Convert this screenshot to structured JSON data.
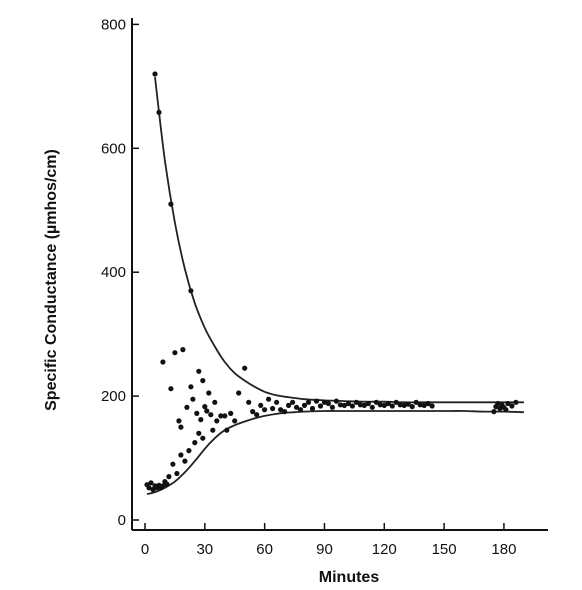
{
  "chart_data": {
    "type": "scatter",
    "title": "",
    "xlabel": "Minutes",
    "ylabel": "Specific Conductance (µmhos/cm)",
    "xlim": [
      0,
      195
    ],
    "ylim": [
      0,
      800
    ],
    "x_ticks": [
      0,
      30,
      60,
      90,
      120,
      150,
      180
    ],
    "y_ticks": [
      0,
      200,
      400,
      600,
      800
    ],
    "x_tick_labels": [
      "0",
      "30",
      "60",
      "90",
      "120",
      "150",
      "180"
    ],
    "y_tick_labels": [
      "0",
      "200",
      "400",
      "600",
      "800"
    ],
    "grid": false,
    "legend": "none",
    "colors": {
      "points": "#111111",
      "curves": "#222222",
      "axes": "#111111"
    },
    "points": [
      [
        5,
        720
      ],
      [
        7,
        658
      ],
      [
        13,
        510
      ],
      [
        23,
        370
      ],
      [
        1,
        57
      ],
      [
        2,
        52
      ],
      [
        3,
        60
      ],
      [
        4,
        49
      ],
      [
        5,
        55
      ],
      [
        6,
        52
      ],
      [
        7,
        56
      ],
      [
        8,
        52
      ],
      [
        9,
        55
      ],
      [
        10,
        62
      ],
      [
        11,
        58
      ],
      [
        12,
        70
      ],
      [
        14,
        90
      ],
      [
        16,
        75
      ],
      [
        18,
        105
      ],
      [
        20,
        95
      ],
      [
        22,
        112
      ],
      [
        25,
        125
      ],
      [
        27,
        140
      ],
      [
        29,
        132
      ],
      [
        9,
        255
      ],
      [
        15,
        270
      ],
      [
        19,
        275
      ],
      [
        13,
        212
      ],
      [
        17,
        160
      ],
      [
        18,
        150
      ],
      [
        21,
        182
      ],
      [
        23,
        215
      ],
      [
        24,
        195
      ],
      [
        26,
        172
      ],
      [
        27,
        240
      ],
      [
        28,
        162
      ],
      [
        29,
        225
      ],
      [
        30,
        183
      ],
      [
        31,
        176
      ],
      [
        32,
        205
      ],
      [
        33,
        170
      ],
      [
        34,
        145
      ],
      [
        35,
        190
      ],
      [
        36,
        160
      ],
      [
        38,
        168
      ],
      [
        40,
        168
      ],
      [
        41,
        145
      ],
      [
        43,
        172
      ],
      [
        45,
        160
      ],
      [
        47,
        205
      ],
      [
        50,
        245
      ],
      [
        52,
        190
      ],
      [
        54,
        175
      ],
      [
        56,
        170
      ],
      [
        58,
        185
      ],
      [
        60,
        178
      ],
      [
        62,
        195
      ],
      [
        64,
        180
      ],
      [
        66,
        190
      ],
      [
        68,
        178
      ],
      [
        70,
        175
      ],
      [
        72,
        185
      ],
      [
        74,
        190
      ],
      [
        76,
        182
      ],
      [
        78,
        178
      ],
      [
        80,
        185
      ],
      [
        82,
        190
      ],
      [
        84,
        180
      ],
      [
        86,
        192
      ],
      [
        88,
        184
      ],
      [
        90,
        190
      ],
      [
        92,
        188
      ],
      [
        94,
        182
      ],
      [
        96,
        192
      ],
      [
        98,
        186
      ],
      [
        100,
        185
      ],
      [
        102,
        188
      ],
      [
        104,
        184
      ],
      [
        106,
        190
      ],
      [
        108,
        186
      ],
      [
        110,
        185
      ],
      [
        112,
        188
      ],
      [
        114,
        182
      ],
      [
        116,
        190
      ],
      [
        118,
        186
      ],
      [
        120,
        185
      ],
      [
        122,
        188
      ],
      [
        124,
        184
      ],
      [
        126,
        190
      ],
      [
        128,
        186
      ],
      [
        130,
        185
      ],
      [
        132,
        187
      ],
      [
        134,
        183
      ],
      [
        136,
        190
      ],
      [
        138,
        186
      ],
      [
        140,
        185
      ],
      [
        142,
        188
      ],
      [
        144,
        184
      ],
      [
        175,
        175
      ],
      [
        176,
        183
      ],
      [
        177,
        188
      ],
      [
        178,
        180
      ],
      [
        179,
        186
      ],
      [
        180,
        182
      ],
      [
        181,
        178
      ],
      [
        182,
        188
      ],
      [
        184,
        184
      ],
      [
        186,
        190
      ]
    ],
    "curves": [
      {
        "x": [
          5,
          10,
          15,
          20,
          25,
          30,
          35,
          40,
          45,
          50,
          55,
          60,
          65,
          70,
          75,
          80,
          90,
          100,
          110,
          120,
          130,
          140,
          150,
          160,
          170,
          180,
          190
        ],
        "y": [
          715,
          580,
          480,
          405,
          350,
          310,
          280,
          255,
          237,
          225,
          215,
          207,
          202,
          199,
          197,
          195,
          193,
          192,
          191,
          191,
          190,
          190,
          190,
          190,
          190,
          190,
          190
        ]
      },
      {
        "x": [
          1,
          5,
          10,
          15,
          20,
          25,
          30,
          35,
          40,
          45,
          50,
          55,
          60,
          65,
          70,
          75,
          80,
          90,
          100,
          110,
          120,
          130,
          140,
          150,
          160,
          170,
          180,
          190
        ],
        "y": [
          42,
          45,
          52,
          62,
          77,
          95,
          115,
          132,
          145,
          153,
          159,
          164,
          168,
          171,
          173,
          174,
          175,
          176,
          176,
          176,
          176,
          176,
          176,
          176,
          176,
          175,
          175,
          174
        ]
      }
    ]
  }
}
